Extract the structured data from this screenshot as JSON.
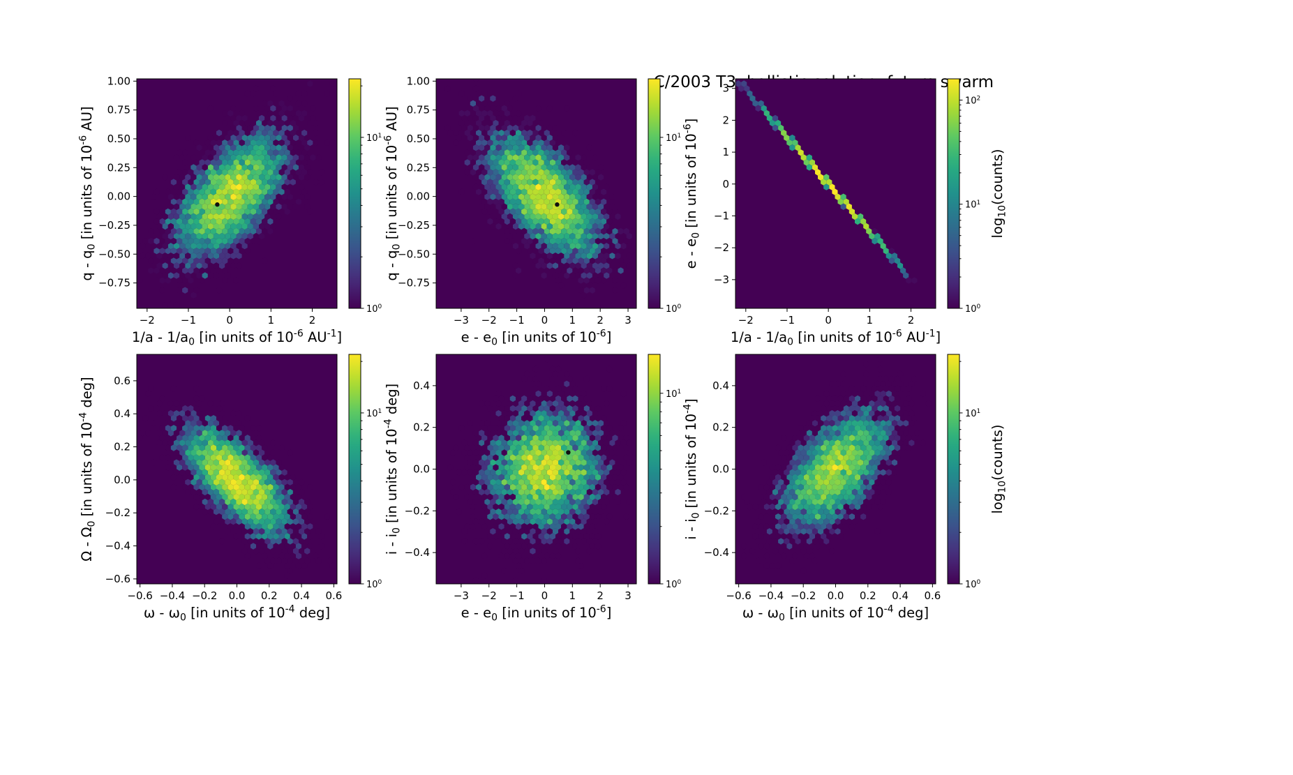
{
  "figure": {
    "title": "C/2003 T3:  ballistic solution, future swarm"
  },
  "colormap": {
    "name": "viridis",
    "stops": [
      "#440154",
      "#472d7b",
      "#3b528b",
      "#2c728e",
      "#21918c",
      "#28ae80",
      "#5ec962",
      "#addc30",
      "#fde725"
    ]
  },
  "chart_data": [
    {
      "type": "heatmap",
      "subtype": "hexbin",
      "panel": "top-left",
      "xlabel": "1/a - 1/a0 [in units of 10^-6 AU^-1]",
      "ylabel": "q - q0 [in units of 10^-6 AU]",
      "xlim": [
        -2.25,
        2.6
      ],
      "ylim": [
        -0.97,
        1.02
      ],
      "xticks": [
        -2,
        -1,
        0,
        1,
        2
      ],
      "yticks": [
        -0.75,
        -0.5,
        -0.25,
        0.0,
        0.25,
        0.5,
        0.75,
        1.0
      ],
      "ytick_format": 2,
      "colorbar": {
        "scale": "log",
        "min": 1,
        "max": 22,
        "ticks": [
          1,
          10
        ],
        "label": ""
      },
      "distribution": {
        "shape": "gaussian",
        "corr": 0.6,
        "sx": 0.7,
        "sy": 0.28
      },
      "marker": {
        "x": -0.3,
        "y": -0.07
      }
    },
    {
      "type": "heatmap",
      "subtype": "hexbin",
      "panel": "top-middle",
      "xlabel": "e - e0 [in units of 10^-6]",
      "ylabel": "q - q0 [in units of 10^-6 AU]",
      "xlim": [
        -3.9,
        3.3
      ],
      "ylim": [
        -0.97,
        1.02
      ],
      "xticks": [
        -3,
        -2,
        -1,
        0,
        1,
        2,
        3
      ],
      "yticks": [
        -0.75,
        -0.5,
        -0.25,
        0.0,
        0.25,
        0.5,
        0.75,
        1.0
      ],
      "ytick_format": 2,
      "colorbar": {
        "scale": "log",
        "min": 1,
        "max": 22,
        "ticks": [
          1,
          10
        ],
        "label": ""
      },
      "distribution": {
        "shape": "gaussian",
        "corr": -0.6,
        "sx": 1.05,
        "sy": 0.28
      },
      "marker": {
        "x": 0.45,
        "y": -0.07
      }
    },
    {
      "type": "heatmap",
      "subtype": "hexbin",
      "panel": "top-right",
      "xlabel": "1/a - 1/a0 [in units of 10^-6 AU^-1]",
      "ylabel": "e - e0 [in units of 10^-6]",
      "xlim": [
        -2.25,
        2.6
      ],
      "ylim": [
        -3.9,
        3.3
      ],
      "xticks": [
        -2,
        -1,
        0,
        1,
        2
      ],
      "yticks": [
        -3,
        -2,
        -1,
        0,
        1,
        2,
        3
      ],
      "ytick_format": 0,
      "colorbar": {
        "scale": "log",
        "min": 1,
        "max": 160,
        "ticks": [
          1,
          10,
          100
        ],
        "label": "log10(counts)"
      },
      "distribution": {
        "shape": "line",
        "slope": -1.48,
        "from": -2.15,
        "to": 2.05
      }
    },
    {
      "type": "heatmap",
      "subtype": "hexbin",
      "panel": "bottom-left",
      "xlabel": "ω - ω0 [in units of 10^-4 deg]",
      "ylabel": "Ω - Ω0 [in units of 10^-4 deg]",
      "xlim": [
        -0.62,
        0.62
      ],
      "ylim": [
        -0.63,
        0.76
      ],
      "xticks": [
        -0.6,
        -0.4,
        -0.2,
        0.0,
        0.2,
        0.4,
        0.6
      ],
      "yticks": [
        -0.6,
        -0.4,
        -0.2,
        0.0,
        0.2,
        0.4,
        0.6
      ],
      "ytick_format": 1,
      "colorbar": {
        "scale": "log",
        "min": 1,
        "max": 22,
        "ticks": [
          1,
          10
        ],
        "label": ""
      },
      "distribution": {
        "shape": "gaussian",
        "corr": -0.7,
        "sx": 0.17,
        "sy": 0.17
      }
    },
    {
      "type": "heatmap",
      "subtype": "hexbin",
      "panel": "bottom-middle",
      "xlabel": "e - e0 [in units of 10^-6]",
      "ylabel": "i - i0 [in units of 10^-4 deg]",
      "xlim": [
        -3.9,
        3.3
      ],
      "ylim": [
        -0.55,
        0.55
      ],
      "xticks": [
        -3,
        -2,
        -1,
        0,
        1,
        2,
        3
      ],
      "yticks": [
        -0.4,
        -0.2,
        0.0,
        0.2,
        0.4
      ],
      "ytick_format": 1,
      "colorbar": {
        "scale": "log",
        "min": 1,
        "max": 16,
        "ticks": [
          1,
          10
        ],
        "label": ""
      },
      "distribution": {
        "shape": "gaussian",
        "corr": 0.1,
        "sx": 1.05,
        "sy": 0.15
      },
      "marker": {
        "x": 0.85,
        "y": 0.08
      }
    },
    {
      "type": "heatmap",
      "subtype": "hexbin",
      "panel": "bottom-right",
      "xlabel": "ω - ω0 [in units of 10^-4 deg]",
      "ylabel": "i - i0 [in units of 10^-4]",
      "xlim": [
        -0.62,
        0.62
      ],
      "ylim": [
        -0.55,
        0.55
      ],
      "xticks": [
        -0.6,
        -0.4,
        -0.2,
        0.0,
        0.2,
        0.4,
        0.6
      ],
      "yticks": [
        -0.4,
        -0.2,
        0.0,
        0.2,
        0.4
      ],
      "ytick_format": 1,
      "colorbar": {
        "scale": "log",
        "min": 1,
        "max": 22,
        "ticks": [
          1,
          10
        ],
        "label": "log10(counts)"
      },
      "distribution": {
        "shape": "gaussian",
        "corr": 0.6,
        "sx": 0.17,
        "sy": 0.15
      }
    }
  ]
}
